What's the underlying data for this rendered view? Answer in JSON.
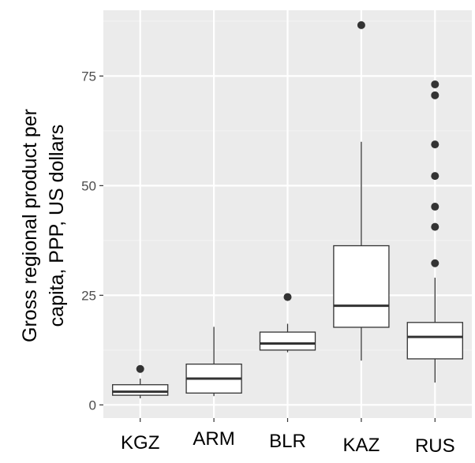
{
  "chart_data": {
    "type": "boxplot",
    "title": "",
    "xlabel": "",
    "ylabel_lines": [
      "Gross regional product per",
      "capita, PPP, US dollars"
    ],
    "ylim": [
      -3,
      90
    ],
    "yticks": [
      0,
      25,
      50,
      75
    ],
    "grid": true,
    "categories": [
      "KGZ",
      "ARM",
      "BLR",
      "KAZ",
      "RUS"
    ],
    "boxes": [
      {
        "name": "KGZ",
        "whisker_low": 1.5,
        "q1": 2.2,
        "median": 3.0,
        "q3": 4.6,
        "whisker_high": 6.0,
        "outliers": [
          8.2
        ]
      },
      {
        "name": "ARM",
        "whisker_low": 2.0,
        "q1": 2.7,
        "median": 6.0,
        "q3": 9.3,
        "whisker_high": 17.8,
        "outliers": []
      },
      {
        "name": "BLR",
        "whisker_low": 12.0,
        "q1": 12.5,
        "median": 14.0,
        "q3": 16.6,
        "whisker_high": 18.5,
        "outliers": [
          24.6
        ]
      },
      {
        "name": "KAZ",
        "whisker_low": 10.1,
        "q1": 17.7,
        "median": 22.6,
        "q3": 36.3,
        "whisker_high": 60.0,
        "outliers": [
          86.6
        ]
      },
      {
        "name": "RUS",
        "whisker_low": 5.1,
        "q1": 10.5,
        "median": 15.5,
        "q3": 18.8,
        "whisker_high": 29.0,
        "outliers": [
          32.3,
          40.6,
          45.2,
          52.2,
          59.4,
          70.6,
          73.1
        ]
      }
    ],
    "colors": {
      "panel": "#ebebeb",
      "grid_major": "#ffffff",
      "grid_minor": "#f2f2f2",
      "box_fill": "#ffffff",
      "stroke": "#333333"
    }
  }
}
